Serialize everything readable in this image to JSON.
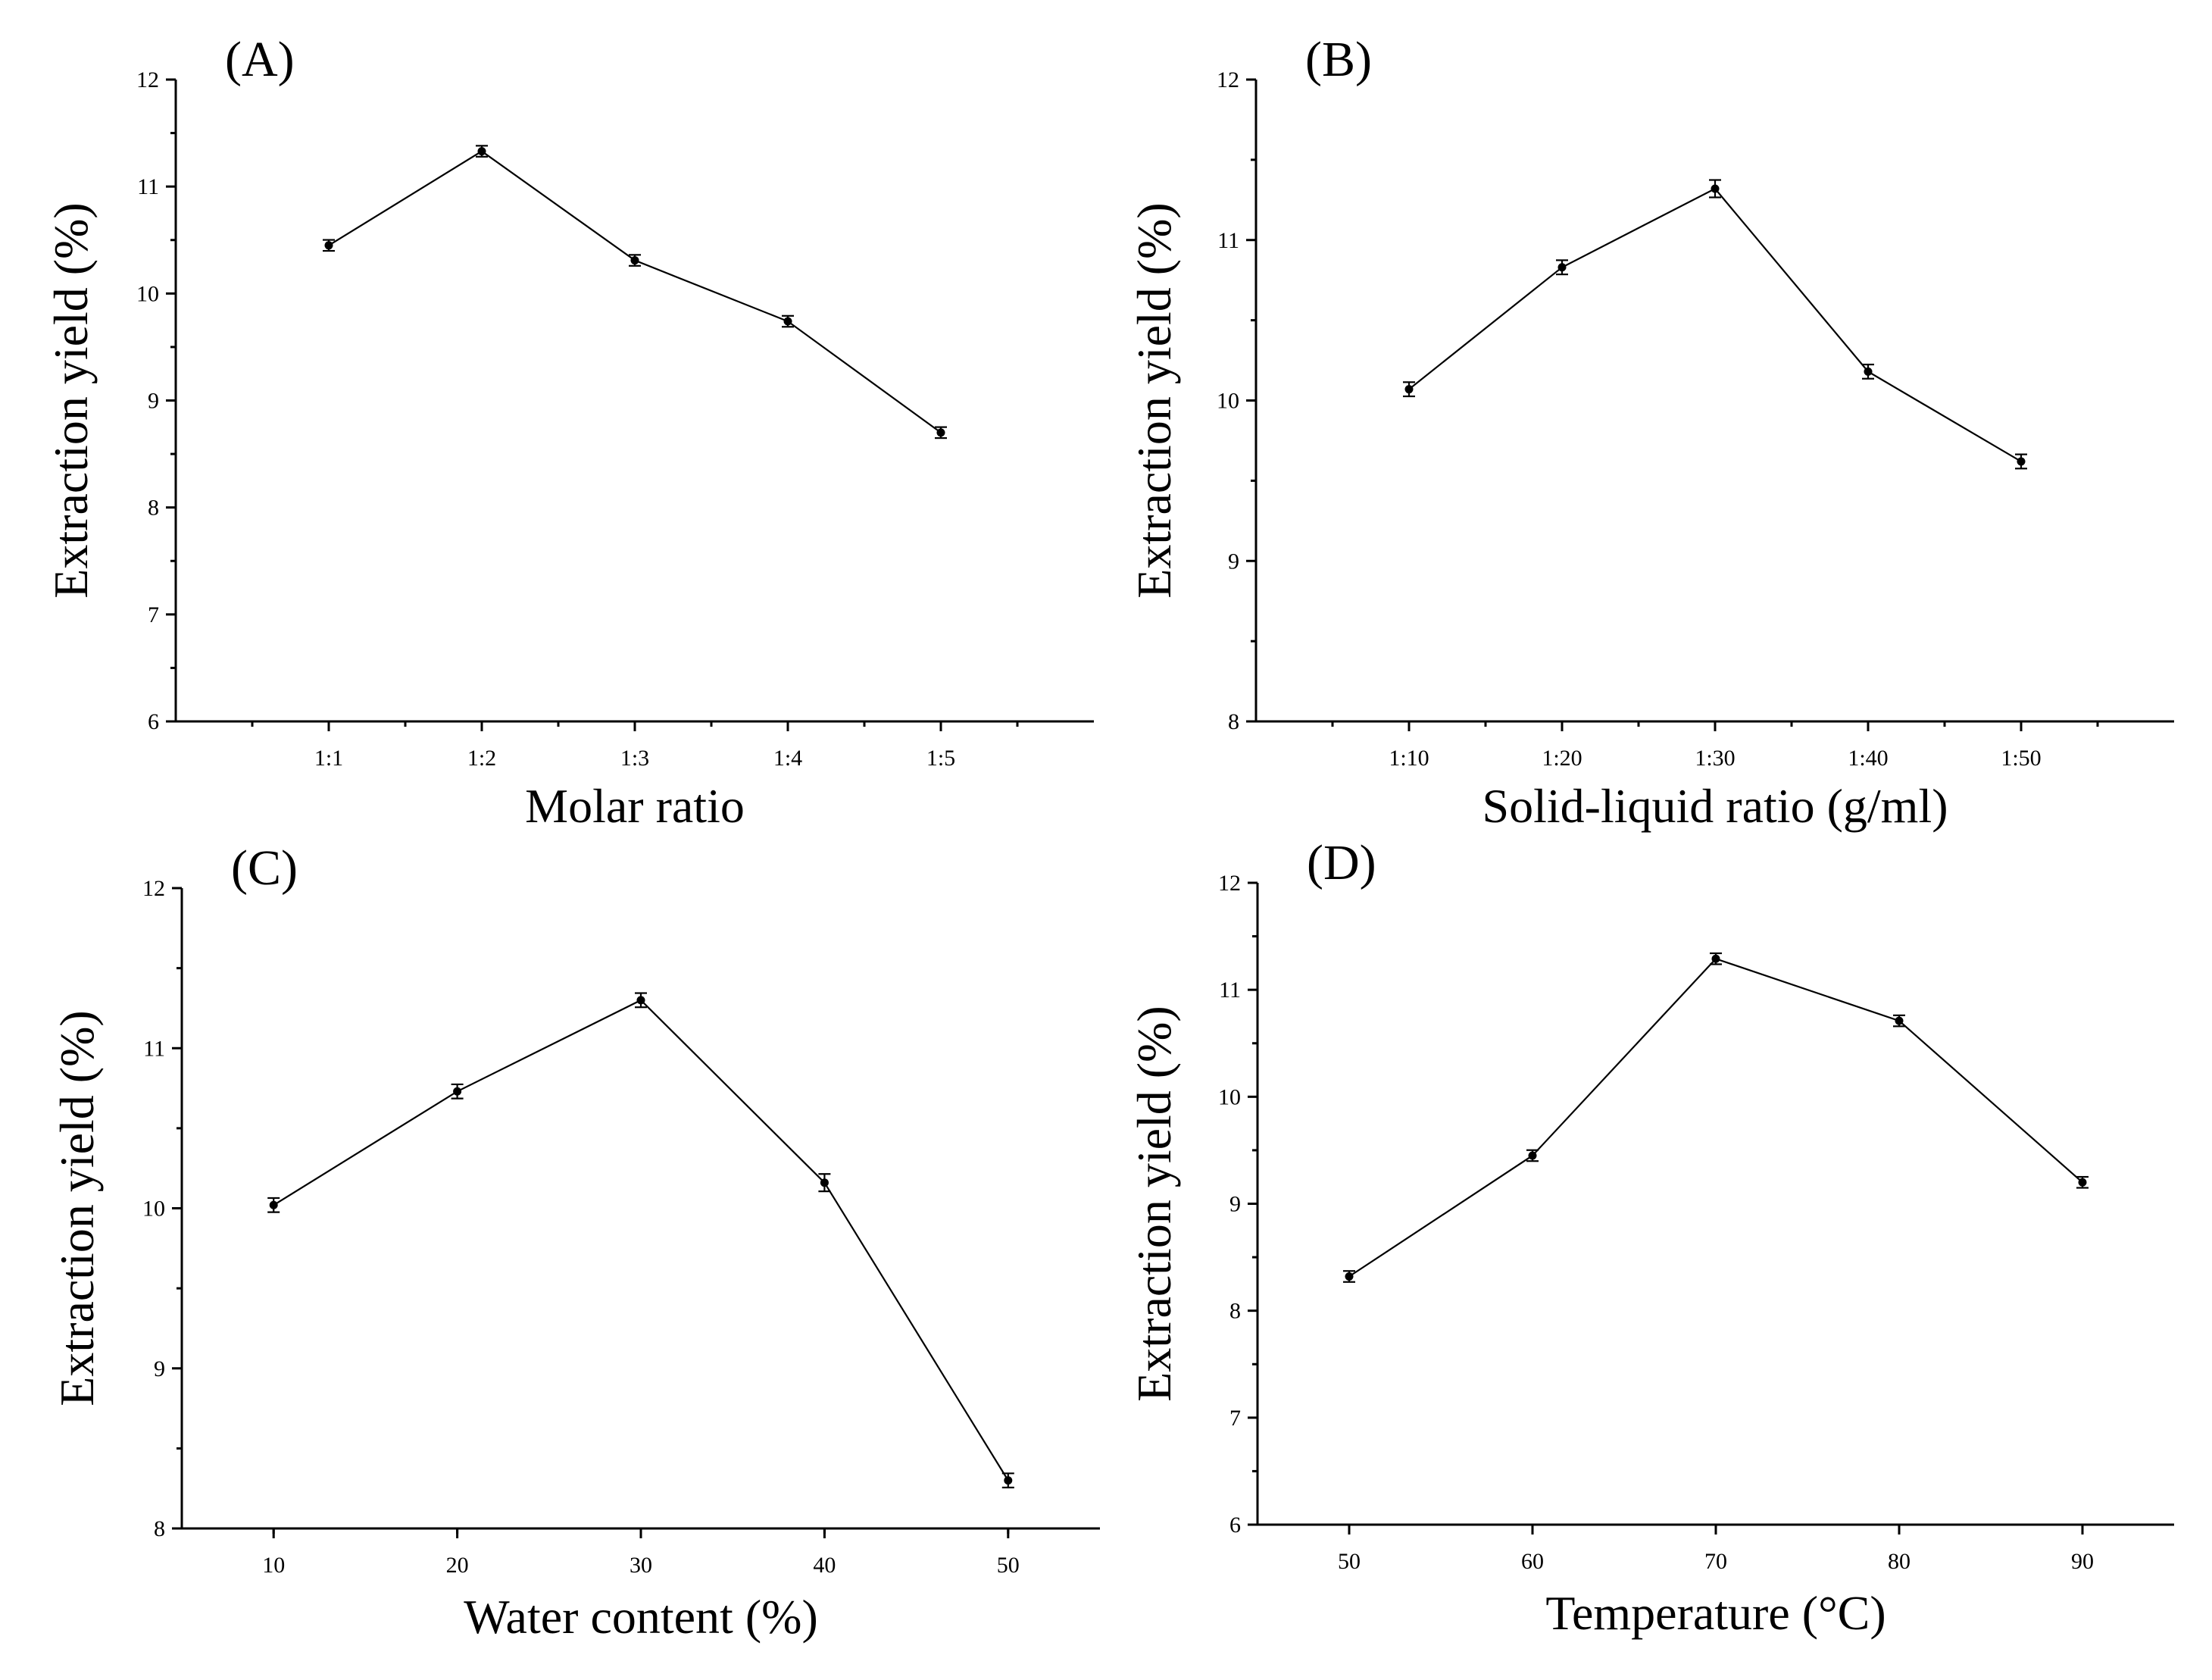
{
  "chart_data": [
    {
      "type": "line",
      "panel_label": "(A)",
      "xlabel": "Molar ratio",
      "ylabel": "Extraction yield (%)",
      "categories": [
        "1:1",
        "1:2",
        "1:3",
        "1:4",
        "1:5"
      ],
      "values": [
        10.45,
        11.33,
        10.31,
        9.74,
        8.7
      ],
      "errors": [
        0.03,
        0.03,
        0.03,
        0.03,
        0.03
      ],
      "ylim": [
        6,
        12
      ],
      "yticks": [
        6,
        7,
        8,
        9,
        10,
        11,
        12
      ],
      "ytick_labels": [
        "6",
        "7",
        "8",
        "9",
        "10",
        "11",
        "12"
      ],
      "ytick_minor_step": 0.5
    },
    {
      "type": "line",
      "panel_label": "(B)",
      "xlabel": "Solid-liquid ratio (g/ml)",
      "ylabel": "Extraction yield (%)",
      "categories": [
        "1:10",
        "1:20",
        "1:30",
        "1:40",
        "1:50"
      ],
      "values": [
        10.07,
        10.83,
        11.32,
        10.18,
        9.62
      ],
      "errors": [
        0.03,
        0.03,
        0.04,
        0.03,
        0.03
      ],
      "ylim": [
        8,
        12
      ],
      "yticks": [
        8,
        9,
        10,
        11,
        12
      ],
      "ytick_labels": [
        "8",
        "9",
        "10",
        "11",
        "12"
      ],
      "ytick_minor_step": 0.5
    },
    {
      "type": "line",
      "panel_label": "(C)",
      "xlabel": "Water content (%)",
      "ylabel": "Extraction yield (%)",
      "x": [
        10,
        20,
        30,
        40,
        50
      ],
      "x_tick_labels": [
        "10",
        "20",
        "30",
        "40",
        "50"
      ],
      "values": [
        10.02,
        10.73,
        11.3,
        10.16,
        8.3
      ],
      "errors": [
        0.03,
        0.03,
        0.03,
        0.04,
        0.03
      ],
      "xlim": [
        5,
        55
      ],
      "ylim": [
        8,
        12
      ],
      "yticks": [
        8,
        9,
        10,
        11,
        12
      ],
      "ytick_labels": [
        "8",
        "9",
        "10",
        "11",
        "12"
      ],
      "ytick_minor_step": 0.5
    },
    {
      "type": "line",
      "panel_label": "(D)",
      "xlabel": "Temperature (°C)",
      "ylabel": "Extraction yield (%)",
      "x": [
        50,
        60,
        70,
        80,
        90
      ],
      "x_tick_labels": [
        "50",
        "60",
        "70",
        "80",
        "90"
      ],
      "values": [
        8.32,
        9.45,
        11.29,
        10.71,
        9.2
      ],
      "errors": [
        0.03,
        0.03,
        0.03,
        0.03,
        0.03
      ],
      "xlim": [
        45,
        95
      ],
      "ylim": [
        6,
        12
      ],
      "yticks": [
        6,
        7,
        8,
        9,
        10,
        11,
        12
      ],
      "ytick_labels": [
        "6",
        "7",
        "8",
        "9",
        "10",
        "11",
        "12"
      ],
      "ytick_minor_step": 0.5
    }
  ]
}
